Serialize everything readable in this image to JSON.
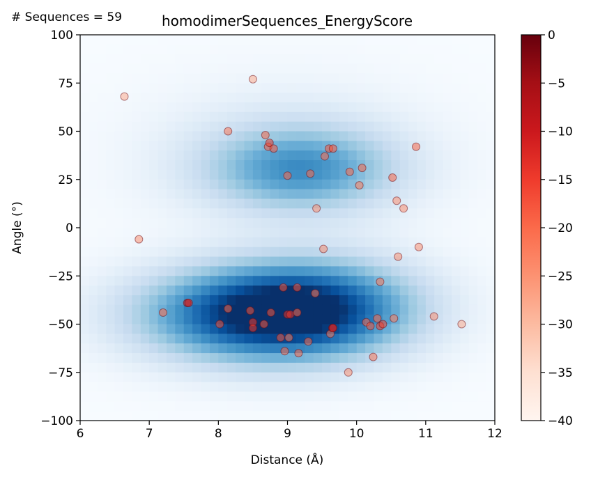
{
  "chart_data": {
    "type": "scatter",
    "title": "homodimerSequences_EnergyScore",
    "annotation": "# Sequences = 59",
    "xlabel": "Distance (Å)",
    "ylabel": "Angle (°)",
    "xlim": [
      6,
      12
    ],
    "ylim": [
      -100,
      100
    ],
    "xticks": [
      "6",
      "7",
      "8",
      "9",
      "10",
      "11",
      "12"
    ],
    "yticks": [
      "100",
      "75",
      "50",
      "25",
      "0",
      "−25",
      "−50",
      "−75",
      "−100"
    ],
    "background": "2D density heatmap (Blues colormap) with two clusters",
    "density_blobs": [
      {
        "x": 8.6,
        "y": -45,
        "sx": 1.2,
        "sy": 17,
        "w": 1.0
      },
      {
        "x": 9.6,
        "y": -40,
        "sx": 1.0,
        "sy": 18,
        "w": 0.45
      },
      {
        "x": 9.2,
        "y": 30,
        "sx": 0.95,
        "sy": 15,
        "w": 0.55
      },
      {
        "x": 9.0,
        "y": 40,
        "sx": 1.4,
        "sy": 25,
        "w": 0.15
      }
    ],
    "grid": false,
    "points": [
      {
        "x": 6.64,
        "y": 68,
        "score": -28
      },
      {
        "x": 6.85,
        "y": -6,
        "score": -25
      },
      {
        "x": 7.2,
        "y": -44,
        "score": -20
      },
      {
        "x": 7.55,
        "y": -39,
        "score": -10
      },
      {
        "x": 7.57,
        "y": -39,
        "score": -12
      },
      {
        "x": 8.02,
        "y": -50,
        "score": -18
      },
      {
        "x": 8.14,
        "y": 50,
        "score": -22
      },
      {
        "x": 8.14,
        "y": -42,
        "score": -20
      },
      {
        "x": 8.46,
        "y": -43,
        "score": -18
      },
      {
        "x": 8.5,
        "y": 77,
        "score": -28
      },
      {
        "x": 8.5,
        "y": -49,
        "score": -15
      },
      {
        "x": 8.5,
        "y": -52,
        "score": -15
      },
      {
        "x": 8.66,
        "y": -50,
        "score": -18
      },
      {
        "x": 8.68,
        "y": 48,
        "score": -20
      },
      {
        "x": 8.72,
        "y": 42,
        "score": -18
      },
      {
        "x": 8.74,
        "y": 44,
        "score": -16
      },
      {
        "x": 8.76,
        "y": -44,
        "score": -18
      },
      {
        "x": 8.8,
        "y": 41,
        "score": -18
      },
      {
        "x": 8.9,
        "y": -57,
        "score": -18
      },
      {
        "x": 8.94,
        "y": -31,
        "score": -18
      },
      {
        "x": 8.96,
        "y": -64,
        "score": -20
      },
      {
        "x": 9.0,
        "y": 27,
        "score": -20
      },
      {
        "x": 9.02,
        "y": -57,
        "score": -22
      },
      {
        "x": 9.0,
        "y": -45,
        "score": -14
      },
      {
        "x": 9.04,
        "y": -45,
        "score": -14
      },
      {
        "x": 9.14,
        "y": -31,
        "score": -18
      },
      {
        "x": 9.14,
        "y": -44,
        "score": -20
      },
      {
        "x": 9.16,
        "y": -65,
        "score": -20
      },
      {
        "x": 9.3,
        "y": -59,
        "score": -20
      },
      {
        "x": 9.33,
        "y": 28,
        "score": -20
      },
      {
        "x": 9.4,
        "y": -34,
        "score": -22
      },
      {
        "x": 9.42,
        "y": 10,
        "score": -25
      },
      {
        "x": 9.52,
        "y": -11,
        "score": -25
      },
      {
        "x": 9.54,
        "y": 37,
        "score": -20
      },
      {
        "x": 9.6,
        "y": 41,
        "score": -18
      },
      {
        "x": 9.62,
        "y": -55,
        "score": -22
      },
      {
        "x": 9.65,
        "y": -52,
        "score": -10
      },
      {
        "x": 9.66,
        "y": -52,
        "score": -12
      },
      {
        "x": 9.66,
        "y": 41,
        "score": -18
      },
      {
        "x": 9.88,
        "y": -75,
        "score": -25
      },
      {
        "x": 9.9,
        "y": 29,
        "score": -20
      },
      {
        "x": 10.04,
        "y": 22,
        "score": -22
      },
      {
        "x": 10.08,
        "y": 31,
        "score": -20
      },
      {
        "x": 10.14,
        "y": -49,
        "score": -20
      },
      {
        "x": 10.2,
        "y": -51,
        "score": -18
      },
      {
        "x": 10.24,
        "y": -67,
        "score": -22
      },
      {
        "x": 10.3,
        "y": -47,
        "score": -20
      },
      {
        "x": 10.34,
        "y": -28,
        "score": -22
      },
      {
        "x": 10.34,
        "y": -51,
        "score": -16
      },
      {
        "x": 10.38,
        "y": -50,
        "score": -16
      },
      {
        "x": 10.52,
        "y": 26,
        "score": -20
      },
      {
        "x": 10.54,
        "y": -47,
        "score": -22
      },
      {
        "x": 10.58,
        "y": 14,
        "score": -25
      },
      {
        "x": 10.6,
        "y": -15,
        "score": -25
      },
      {
        "x": 10.68,
        "y": 10,
        "score": -25
      },
      {
        "x": 10.86,
        "y": 42,
        "score": -20
      },
      {
        "x": 10.9,
        "y": -10,
        "score": -25
      },
      {
        "x": 11.12,
        "y": -46,
        "score": -25
      },
      {
        "x": 11.52,
        "y": -50,
        "score": -28
      }
    ],
    "colorbar": {
      "colormap": "Reds",
      "range": [
        -40,
        0
      ],
      "ticks": [
        "0",
        "−5",
        "−10",
        "−15",
        "−20",
        "−25",
        "−30",
        "−35",
        "−40"
      ]
    }
  }
}
